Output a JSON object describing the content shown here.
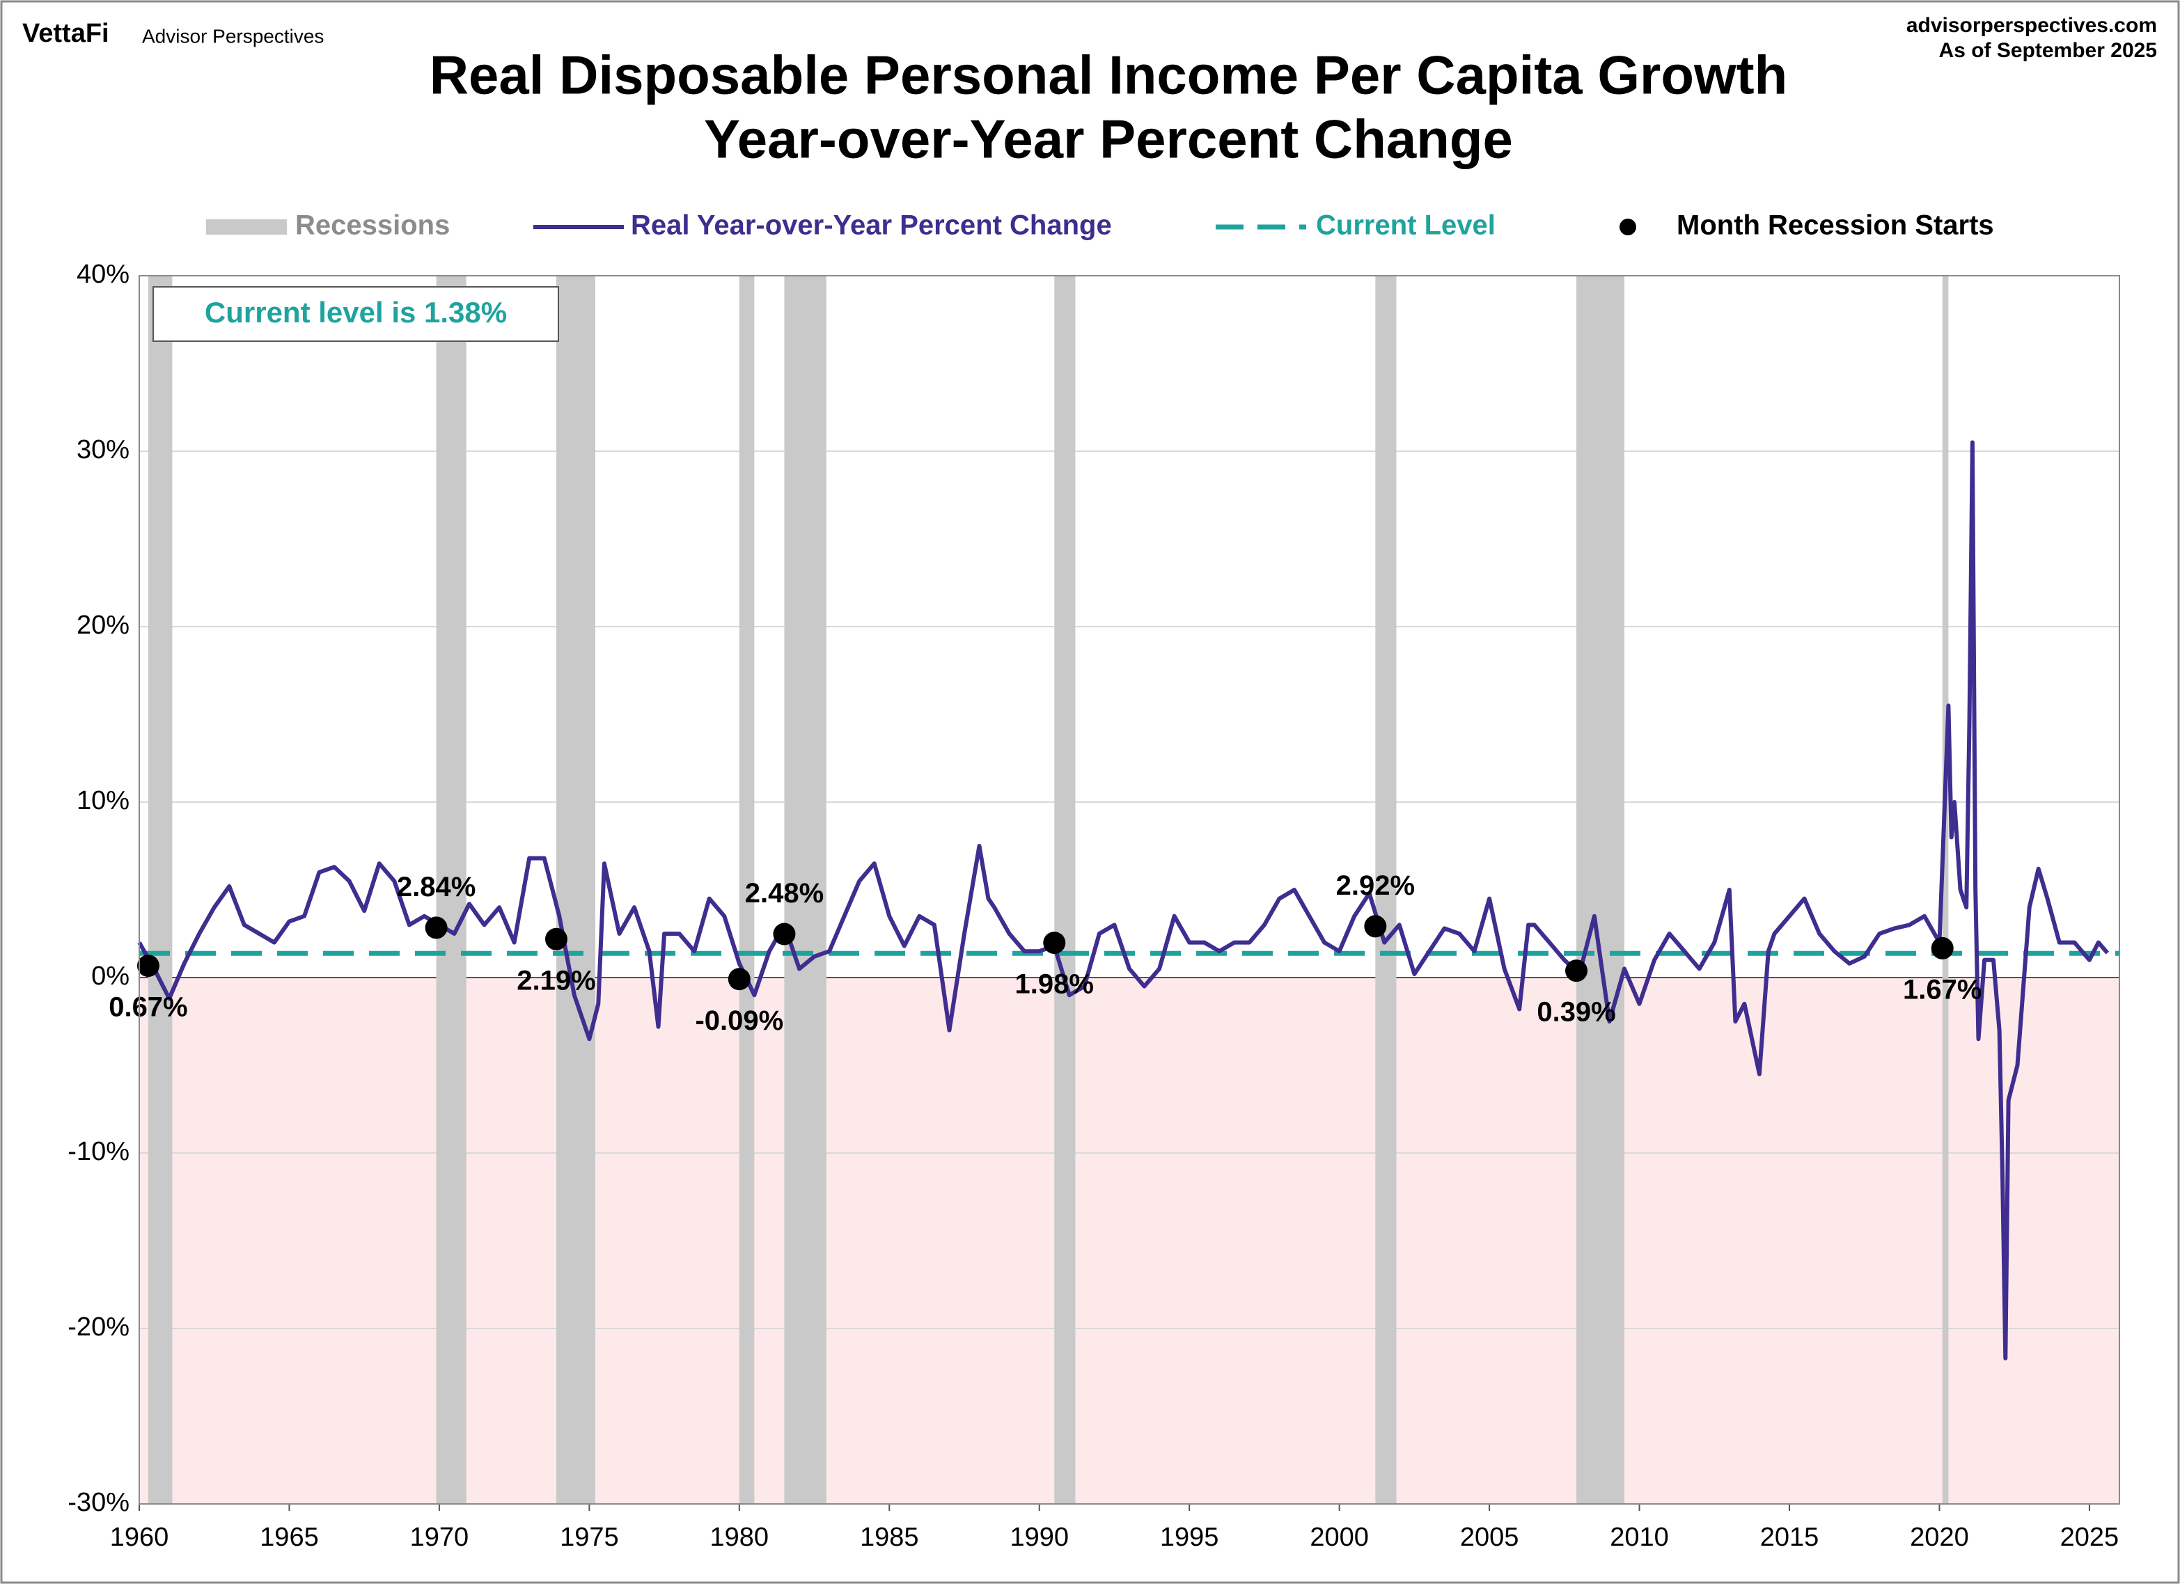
{
  "chart_data": {
    "type": "line",
    "brand": "VettaFi",
    "brand_sub": "Advisor Perspectives",
    "source": "advisorperspectives.com",
    "date": "As of September 2025",
    "title": "Real Disposable Personal Income Per Capita Growth",
    "subtitle": "Year-over-Year Percent Change",
    "annotation": "Current level is 1.38%",
    "current_level": 1.38,
    "current_level_name": "Current Level",
    "current_level_color": "#1fa39e",
    "recession_name": "Recessions",
    "recession_color": "#c9c9c9",
    "recessions": [
      [
        1960.3,
        1961.1
      ],
      [
        1969.9,
        1970.9
      ],
      [
        1973.9,
        1975.2
      ],
      [
        1980.0,
        1980.5
      ],
      [
        1981.5,
        1982.9
      ],
      [
        1990.5,
        1991.2
      ],
      [
        2001.2,
        2001.9
      ],
      [
        2007.9,
        2009.5
      ],
      [
        2020.1,
        2020.3
      ]
    ],
    "starts_name": "Month Recession Starts",
    "starts_color": "#000000",
    "starts_x": [
      1960.3,
      1969.9,
      1973.9,
      1980.0,
      1981.5,
      1990.5,
      2001.2,
      2007.9,
      2020.1
    ],
    "starts_values": [
      0.67,
      2.84,
      2.19,
      -0.09,
      2.48,
      1.98,
      2.92,
      0.39,
      1.67
    ],
    "starts_value_labels": [
      "0.67%",
      "2.84%",
      "2.19%",
      "-0.09%",
      "2.48%",
      "1.98%",
      "2.92%",
      "0.39%",
      "1.67%"
    ],
    "x": [
      1960.0,
      1960.5,
      1961.0,
      1961.5,
      1962.0,
      1962.5,
      1963.0,
      1963.5,
      1964.0,
      1964.5,
      1965.0,
      1965.5,
      1966.0,
      1966.5,
      1967.0,
      1967.5,
      1968.0,
      1968.5,
      1969.0,
      1969.5,
      1970.0,
      1970.5,
      1971.0,
      1971.5,
      1972.0,
      1972.5,
      1973.0,
      1973.5,
      1974.0,
      1974.5,
      1975.0,
      1975.3,
      1975.5,
      1976.0,
      1976.5,
      1977.0,
      1977.3,
      1977.5,
      1978.0,
      1978.5,
      1979.0,
      1979.5,
      1980.0,
      1980.5,
      1981.0,
      1981.5,
      1982.0,
      1982.5,
      1983.0,
      1983.5,
      1984.0,
      1984.5,
      1985.0,
      1985.5,
      1986.0,
      1986.5,
      1987.0,
      1987.5,
      1988.0,
      1988.3,
      1988.5,
      1989.0,
      1989.5,
      1990.0,
      1990.5,
      1991.0,
      1991.5,
      1992.0,
      1992.5,
      1993.0,
      1993.5,
      1994.0,
      1994.5,
      1995.0,
      1995.5,
      1996.0,
      1996.5,
      1997.0,
      1997.5,
      1998.0,
      1998.5,
      1999.0,
      1999.5,
      2000.0,
      2000.5,
      2001.0,
      2001.5,
      2002.0,
      2002.5,
      2003.0,
      2003.5,
      2004.0,
      2004.5,
      2005.0,
      2005.5,
      2006.0,
      2006.3,
      2006.5,
      2007.0,
      2007.5,
      2008.0,
      2008.5,
      2009.0,
      2009.5,
      2010.0,
      2010.5,
      2011.0,
      2011.5,
      2012.0,
      2012.5,
      2013.0,
      2013.2,
      2013.5,
      2014.0,
      2014.3,
      2014.5,
      2015.0,
      2015.5,
      2016.0,
      2016.5,
      2017.0,
      2017.5,
      2018.0,
      2018.5,
      2019.0,
      2019.5,
      2020.0,
      2020.3,
      2020.4,
      2020.5,
      2020.7,
      2020.9,
      2021.0,
      2021.1,
      2021.2,
      2021.3,
      2021.5,
      2021.8,
      2022.0,
      2022.1,
      2022.2,
      2022.3,
      2022.6,
      2023.0,
      2023.3,
      2023.6,
      2024.0,
      2024.5,
      2025.0,
      2025.3,
      2025.6
    ],
    "series": [
      {
        "name": "Real Year-over-Year Percent Change",
        "color": "#3f2d8f",
        "values": [
          2.0,
          0.5,
          -1.2,
          0.8,
          2.5,
          4.0,
          5.2,
          3.0,
          2.5,
          2.0,
          3.2,
          3.5,
          6.0,
          6.3,
          5.5,
          3.8,
          6.5,
          5.5,
          3.0,
          3.5,
          3.0,
          2.5,
          4.2,
          3.0,
          4.0,
          2.0,
          6.8,
          6.8,
          3.5,
          -1.0,
          -3.5,
          -1.5,
          6.5,
          2.5,
          4.0,
          1.5,
          -2.8,
          2.5,
          2.5,
          1.5,
          4.5,
          3.5,
          0.8,
          -1.0,
          1.5,
          3.0,
          0.5,
          1.2,
          1.5,
          3.5,
          5.5,
          6.5,
          3.5,
          1.8,
          3.5,
          3.0,
          -3.0,
          2.5,
          7.5,
          4.5,
          4.0,
          2.5,
          1.5,
          1.5,
          1.8,
          -1.0,
          -0.5,
          2.5,
          3.0,
          0.5,
          -0.5,
          0.5,
          3.5,
          2.0,
          2.0,
          1.5,
          2.0,
          2.0,
          3.0,
          4.5,
          5.0,
          3.5,
          2.0,
          1.5,
          3.5,
          4.8,
          2.0,
          3.0,
          0.2,
          1.5,
          2.8,
          2.5,
          1.5,
          4.5,
          0.5,
          -1.8,
          3.0,
          3.0,
          2.0,
          1.0,
          0.2,
          3.5,
          -2.5,
          0.5,
          -1.5,
          1.0,
          2.5,
          1.5,
          0.5,
          2.0,
          5.0,
          -2.5,
          -1.5,
          -5.5,
          1.5,
          2.5,
          3.5,
          4.5,
          2.5,
          1.5,
          0.8,
          1.2,
          2.5,
          2.8,
          3.0,
          3.5,
          2.0,
          15.5,
          8.0,
          10.0,
          5.0,
          4.0,
          14.5,
          30.5,
          5.0,
          -3.5,
          1.0,
          1.0,
          -3.0,
          -11.0,
          -21.7,
          -7.0,
          -5.0,
          4.0,
          6.2,
          4.5,
          2.0,
          2.0,
          1.0,
          2.0,
          1.4
        ]
      }
    ],
    "xlim": [
      1960,
      2026
    ],
    "ylim": [
      -30,
      40
    ],
    "xticks": [
      1960,
      1965,
      1970,
      1975,
      1980,
      1985,
      1990,
      1995,
      2000,
      2005,
      2010,
      2015,
      2020,
      2025
    ],
    "yticks": [
      {
        "value": -30,
        "label": "-30%"
      },
      {
        "value": -20,
        "label": "-20%"
      },
      {
        "value": -10,
        "label": "-10%"
      },
      {
        "value": 0,
        "label": "0%"
      },
      {
        "value": 10,
        "label": "10%"
      },
      {
        "value": 20,
        "label": "20%"
      },
      {
        "value": 30,
        "label": "30%"
      },
      {
        "value": 40,
        "label": "40%"
      }
    ],
    "grid": true
  }
}
